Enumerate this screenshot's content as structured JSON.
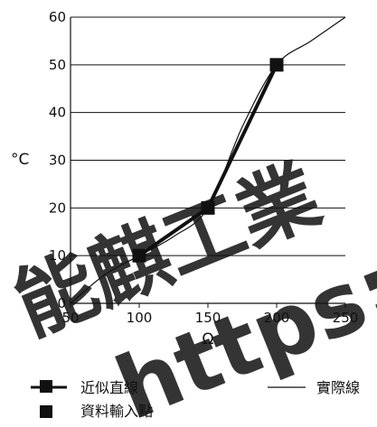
{
  "chart_data": {
    "type": "line",
    "xlabel": "Ω",
    "ylabel": "°C",
    "xlim": [
      50,
      250
    ],
    "ylim": [
      0,
      60
    ],
    "x_ticks": [
      50,
      100,
      150,
      200,
      250
    ],
    "y_ticks": [
      0,
      10,
      20,
      30,
      40,
      50,
      60
    ],
    "grid": "horizontal",
    "series": [
      {
        "name": "近似直線",
        "style": "thick-line-with-square-markers",
        "x": [
          100,
          150,
          200
        ],
        "y": [
          10,
          20,
          50
        ]
      },
      {
        "name": "實際線",
        "style": "thin-curve",
        "x": [
          50,
          75,
          100,
          125,
          150,
          175,
          200,
          225,
          250
        ],
        "y": [
          0,
          6,
          10,
          14,
          20,
          37,
          50,
          55,
          60
        ]
      }
    ],
    "markers": {
      "name": "資料輸入點",
      "x": [
        100,
        150,
        200
      ],
      "y": [
        10,
        20,
        50
      ]
    },
    "legend": {
      "placement": "bottom",
      "entries": [
        "近似直線",
        "實際線",
        "資料輸入點"
      ]
    }
  },
  "watermark": {
    "line1": "能麒工業",
    "line2": "https://",
    "color": "#1e9be0"
  }
}
